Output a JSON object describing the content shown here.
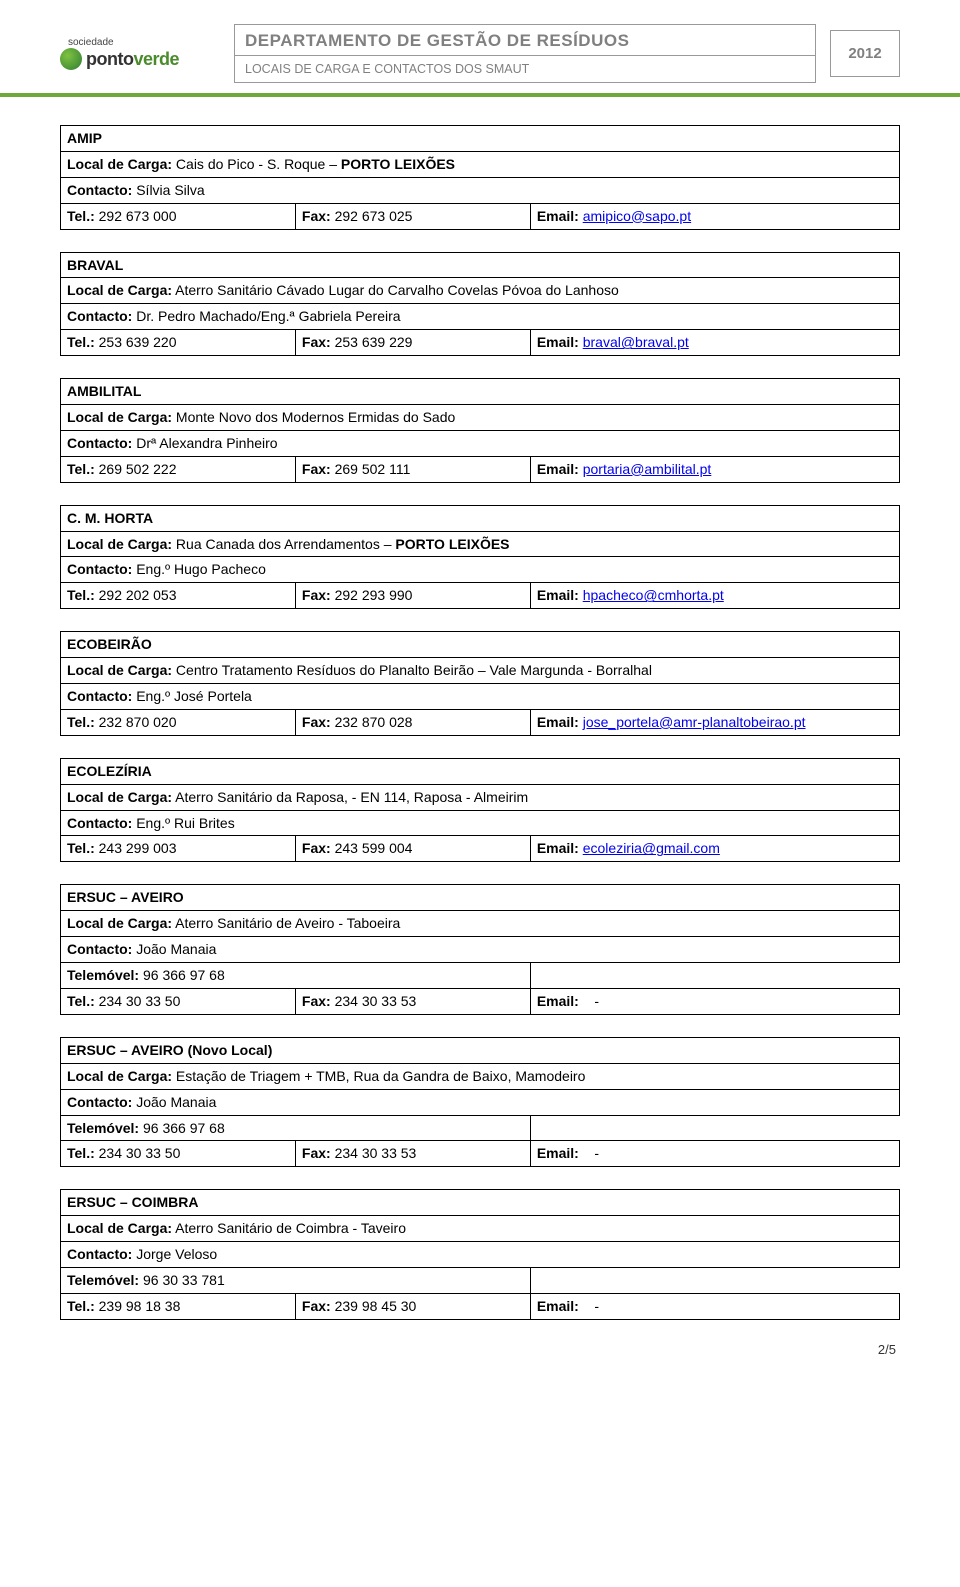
{
  "header": {
    "logo_top": "sociedade",
    "logo_black": "ponto",
    "logo_green": "verde",
    "title": "DEPARTAMENTO DE GESTÃO DE RESÍDUOS",
    "subtitle": "LOCAIS DE CARGA E CONTACTOS DOS SMAUT",
    "year": "2012"
  },
  "labels": {
    "local": "Local de Carga:",
    "contacto": "Contacto:",
    "tel": "Tel.:",
    "fax": "Fax:",
    "email": "Email:",
    "telemovel": "Telemóvel:"
  },
  "link_color": "#0000ee",
  "entities": [
    {
      "name": "AMIP",
      "local": "Cais do Pico - S. Roque – PORTO LEIXÕES",
      "bold_local_suffix": "PORTO LEIXÕES",
      "contacto": "Sílvia Silva",
      "tel": "292 673 000",
      "fax": "292 673 025",
      "email": "amipico@sapo.pt"
    },
    {
      "name": "BRAVAL",
      "local": "Aterro Sanitário Cávado Lugar do Carvalho Covelas Póvoa do Lanhoso",
      "contacto": "Dr. Pedro Machado/Eng.ª Gabriela Pereira",
      "tel": "253 639 220",
      "fax": "253 639 229",
      "email": "braval@braval.pt"
    },
    {
      "name": "AMBILITAL",
      "local": "Monte Novo dos Modernos Ermidas do Sado",
      "contacto": "Drª Alexandra Pinheiro",
      "tel": "269 502 222",
      "fax": "269 502 111",
      "email": "portaria@ambilital.pt"
    },
    {
      "name": "C. M. HORTA",
      "local": "Rua Canada dos Arrendamentos – PORTO LEIXÕES",
      "bold_local_suffix": "PORTO LEIXÕES",
      "contacto": "Eng.º Hugo Pacheco",
      "tel": "292 202 053",
      "fax": "292 293 990",
      "email": "hpacheco@cmhorta.pt"
    },
    {
      "name": "ECOBEIRÃO",
      "local": "Centro Tratamento Resíduos do Planalto Beirão – Vale Margunda - Borralhal",
      "contacto": "Eng.º José Portela",
      "tel": "232 870 020",
      "fax": "232 870 028",
      "email": "jose_portela@amr-planaltobeirao.pt"
    },
    {
      "name": "ECOLEZÍRIA",
      "local": "Aterro Sanitário da Raposa, - EN 114, Raposa - Almeirim",
      "contacto": "Eng.º Rui Brites",
      "tel": "243 299 003",
      "fax": "243 599 004",
      "email": "ecoleziria@gmail.com"
    },
    {
      "name": "ERSUC – AVEIRO",
      "local": "Aterro Sanitário de Aveiro - Taboeira",
      "contacto": "João Manaia",
      "telemovel": "96 366 97 68",
      "tel": "234 30 33 50",
      "fax": "234 30 33 53",
      "email_plain": "-"
    },
    {
      "name": "ERSUC – AVEIRO (Novo Local)",
      "local": "Estação de Triagem  + TMB, Rua da Gandra de Baixo, Mamodeiro",
      "contacto": "João Manaia",
      "telemovel": "96 366 97 68",
      "tel": "234 30 33 50",
      "fax": "234 30 33 53",
      "email_plain": "-"
    },
    {
      "name": "ERSUC – COIMBRA",
      "local": "Aterro Sanitário de Coimbra - Taveiro",
      "contacto": "Jorge Veloso",
      "telemovel": "96 30 33 781",
      "tel": "239 98 18 38",
      "fax": "239 98 45 30",
      "email_plain": "-"
    }
  ],
  "footer": "2/5"
}
